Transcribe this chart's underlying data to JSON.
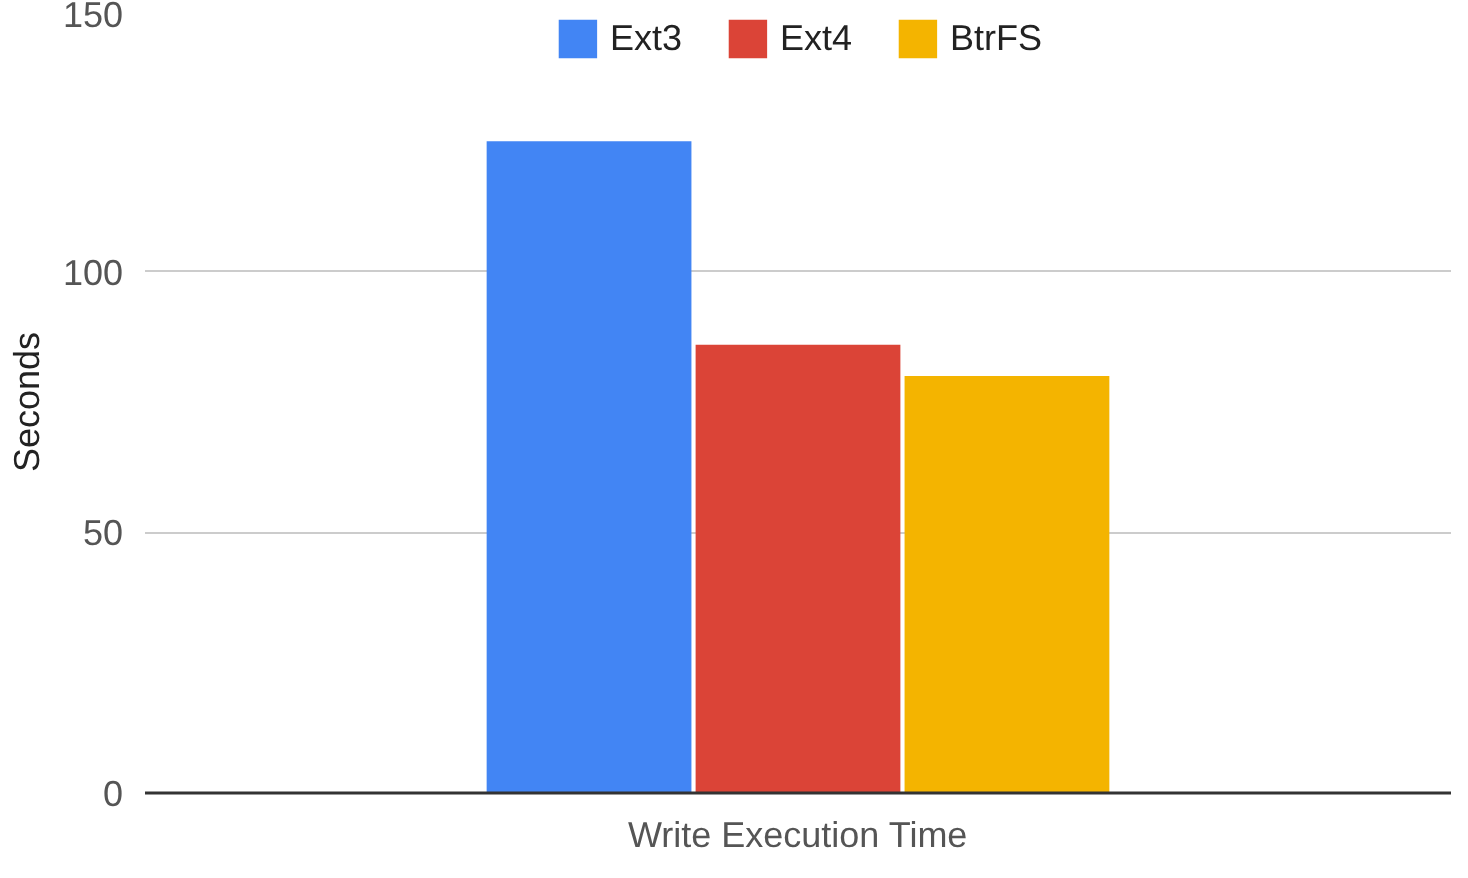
{
  "chart_data": {
    "type": "bar",
    "ylabel": "Seconds",
    "categories": [
      "Write Execution Time"
    ],
    "series": [
      {
        "name": "Ext3",
        "color": "#4285f4",
        "values": [
          125
        ]
      },
      {
        "name": "Ext4",
        "color": "#db4437",
        "values": [
          86
        ]
      },
      {
        "name": "BtrFS",
        "color": "#f4b400",
        "values": [
          80
        ]
      }
    ],
    "ylim": [
      0,
      150
    ],
    "yticks": [
      0,
      50,
      100,
      150
    ],
    "grid": "y",
    "legend": "top"
  }
}
